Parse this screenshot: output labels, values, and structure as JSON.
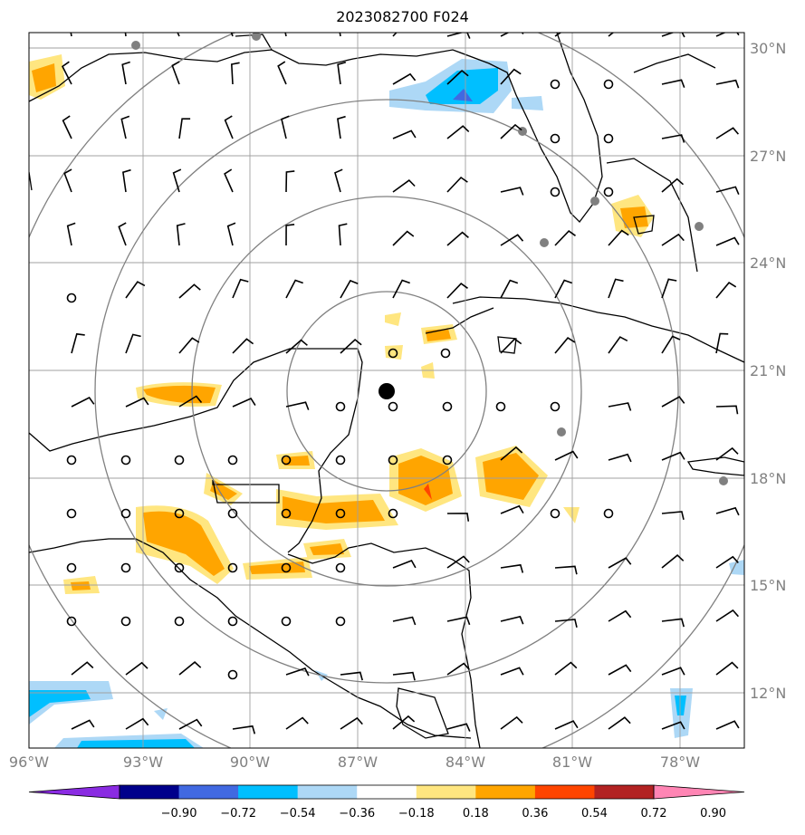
{
  "title": "2023082700 F024",
  "lat_labels": [
    "30°N",
    "27°N",
    "24°N",
    "21°N",
    "18°N",
    "15°N",
    "12°N"
  ],
  "lon_labels": [
    "96°W",
    "93°W",
    "90°W",
    "87°W",
    "84°W",
    "81°W",
    "78°W"
  ],
  "colorbar": {
    "colors": [
      "#8a2be2",
      "#00008b",
      "#4169e1",
      "#00bfff",
      "#add8f6",
      "#ffffff",
      "#ffe680",
      "#ffa500",
      "#ff4500",
      "#b22222",
      "#ff85b4"
    ],
    "labels": [
      "−0.90",
      "−0.72",
      "−0.54",
      "−0.36",
      "−0.18",
      "0.18",
      "0.36",
      "0.54",
      "0.72",
      "0.90"
    ],
    "extend": "both"
  },
  "center_marker": {
    "lon": -86.8,
    "lat": 20.5
  },
  "range_rings": 4
}
